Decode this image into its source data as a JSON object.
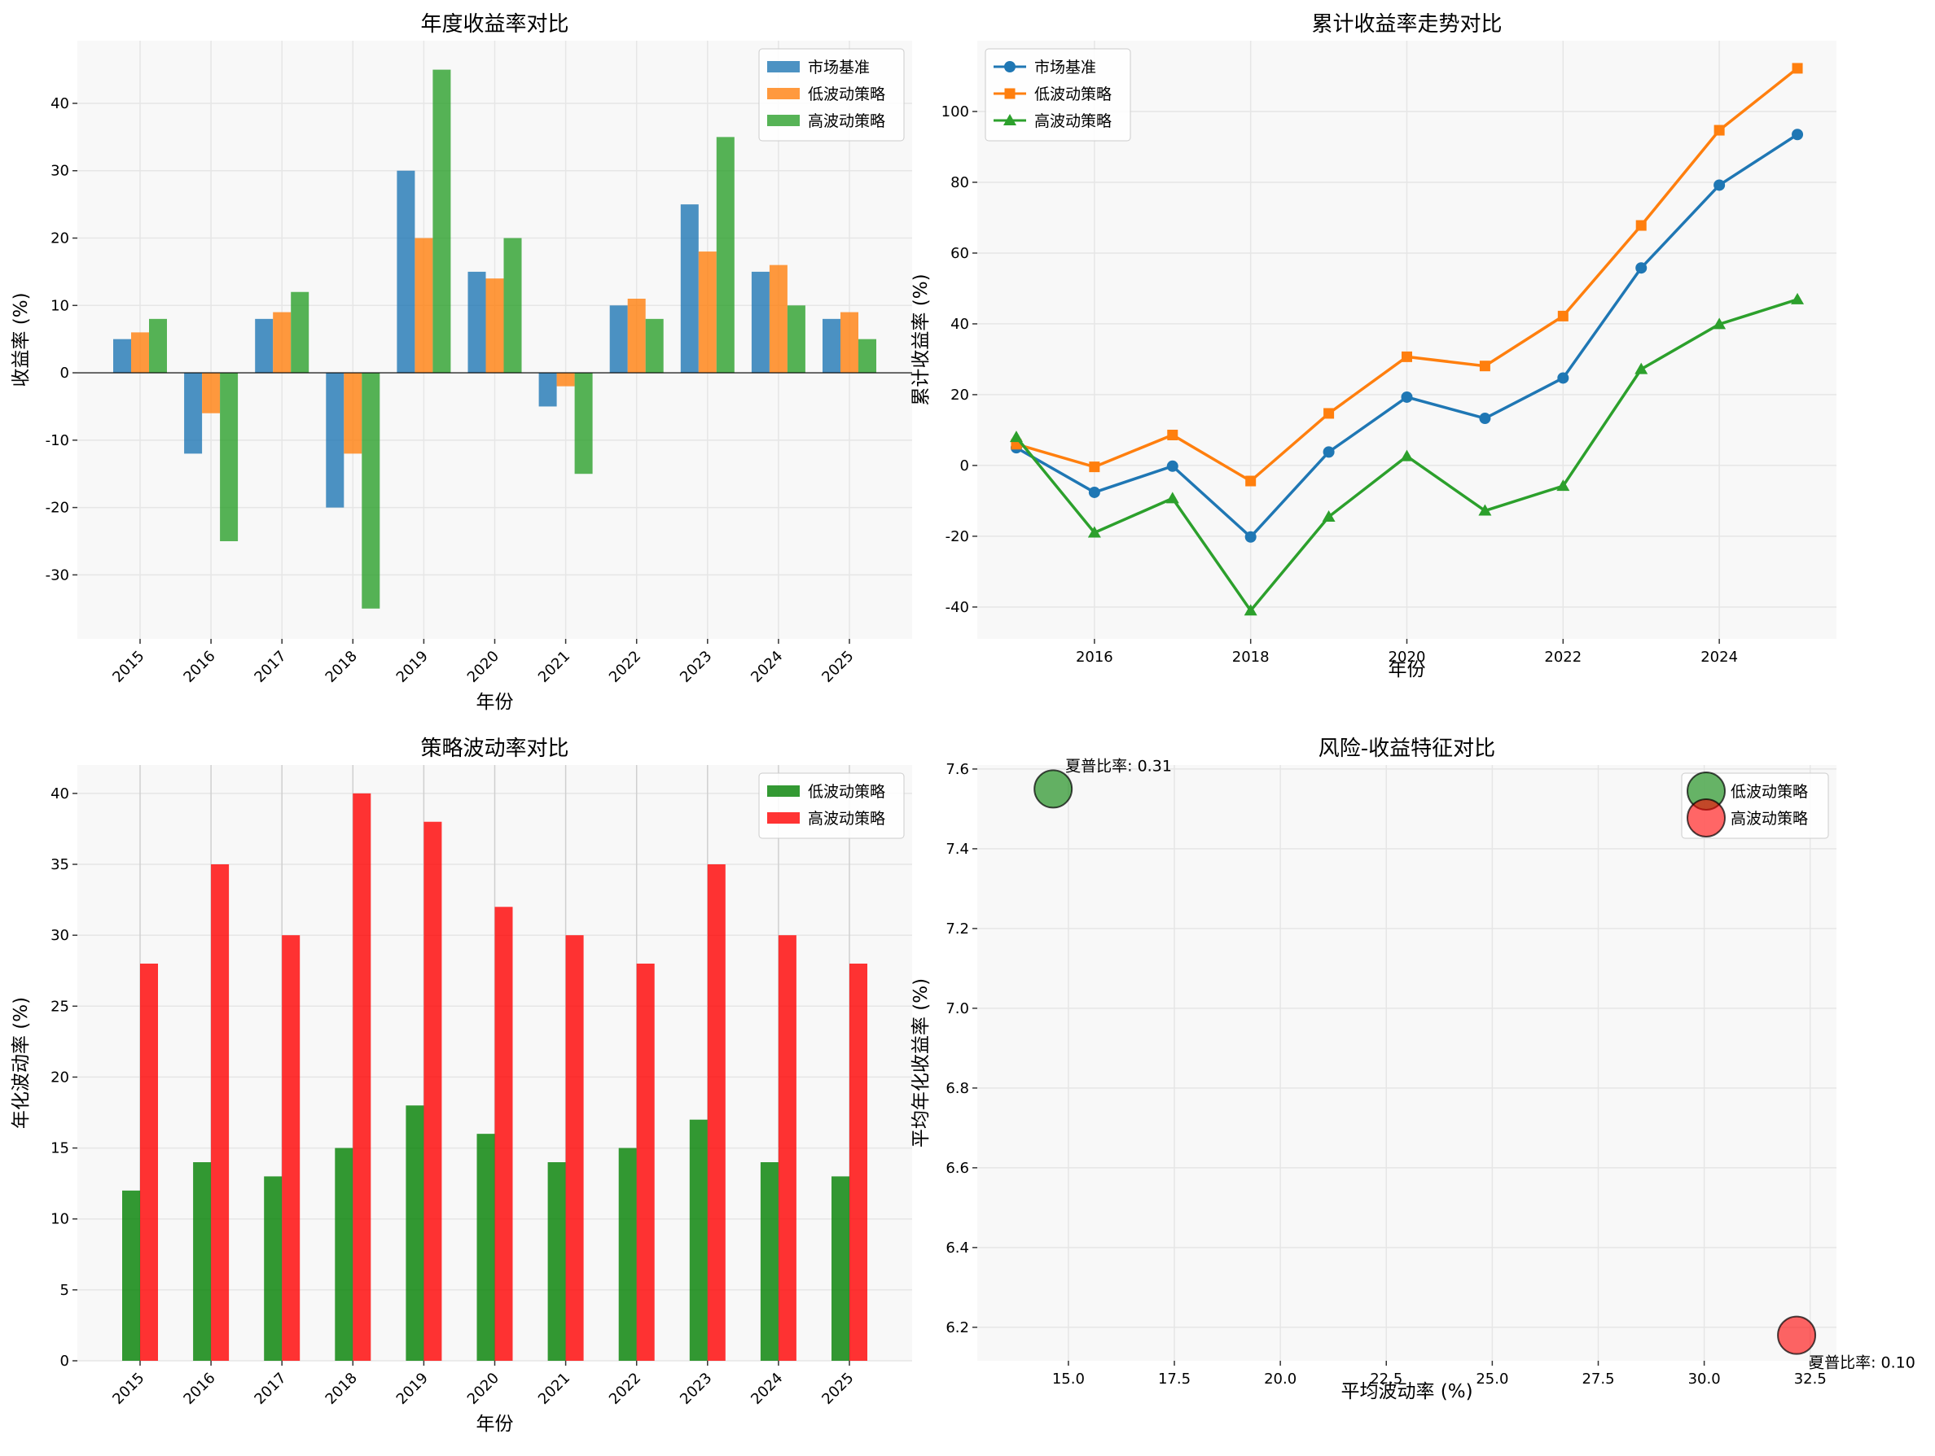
{
  "chart_data": [
    {
      "type": "bar",
      "title": "年度收益率对比",
      "xlabel": "年份",
      "ylabel": "收益率 (%)",
      "categories": [
        "2015",
        "2016",
        "2017",
        "2018",
        "2019",
        "2020",
        "2021",
        "2022",
        "2023",
        "2024",
        "2025"
      ],
      "series": [
        {
          "name": "市场基准",
          "values": [
            5,
            -12,
            8,
            -20,
            30,
            15,
            -5,
            10,
            25,
            15,
            8
          ],
          "color": "#1f77b4"
        },
        {
          "name": "低波动策略",
          "values": [
            6,
            -6,
            9,
            -12,
            20,
            14,
            -2,
            11,
            18,
            16,
            9
          ],
          "color": "#ff7f0e"
        },
        {
          "name": "高波动策略",
          "values": [
            8,
            -25,
            12,
            -35,
            45,
            20,
            -15,
            8,
            35,
            10,
            5
          ],
          "color": "#2ca02c"
        }
      ],
      "yticks": [
        "-30",
        "-20",
        "-10",
        "0",
        "10",
        "20",
        "30",
        "40"
      ],
      "ylim": [
        -39.5,
        49.3
      ],
      "grid": true,
      "legend": "top-right"
    },
    {
      "type": "line",
      "title": "累计收益率走势对比",
      "xlabel": "年份",
      "ylabel": "累计收益率 (%)",
      "x": [
        2015,
        2016,
        2017,
        2018,
        2019,
        2020,
        2021,
        2022,
        2023,
        2024,
        2025
      ],
      "series": [
        {
          "name": "市场基准",
          "values": [
            5,
            -7.6,
            -0.2,
            -20.2,
            3.8,
            19.3,
            13.3,
            24.7,
            55.8,
            79.2,
            93.5
          ],
          "color": "#1f77b4",
          "marker": "circle"
        },
        {
          "name": "低波动策略",
          "values": [
            6,
            -0.4,
            8.6,
            -4.4,
            14.7,
            30.7,
            28.1,
            42.2,
            67.8,
            94.7,
            112.2
          ],
          "color": "#ff7f0e",
          "marker": "square"
        },
        {
          "name": "高波动策略",
          "values": [
            8,
            -19,
            -9.3,
            -41,
            -14.5,
            2.6,
            -12.8,
            -5.8,
            27.2,
            39.9,
            46.9
          ],
          "color": "#2ca02c",
          "marker": "triangle"
        }
      ],
      "xticks": [
        "2016",
        "2018",
        "2020",
        "2022",
        "2024"
      ],
      "yticks": [
        "-40",
        "-20",
        "0",
        "20",
        "40",
        "60",
        "80",
        "100"
      ],
      "xlim": [
        2014.5,
        2025.5
      ],
      "ylim": [
        -49,
        120
      ],
      "grid": true,
      "legend": "top-left"
    },
    {
      "type": "bar",
      "title": "策略波动率对比",
      "xlabel": "年份",
      "ylabel": "年化波动率 (%)",
      "categories": [
        "2015",
        "2016",
        "2017",
        "2018",
        "2019",
        "2020",
        "2021",
        "2022",
        "2023",
        "2024",
        "2025"
      ],
      "series": [
        {
          "name": "低波动策略",
          "values": [
            12,
            14,
            13,
            15,
            18,
            16,
            14,
            15,
            17,
            14,
            13
          ],
          "color": "#008000"
        },
        {
          "name": "高波动策略",
          "values": [
            28,
            35,
            30,
            40,
            38,
            32,
            30,
            28,
            35,
            30,
            28
          ],
          "color": "#ff0000"
        }
      ],
      "yticks": [
        "0",
        "5",
        "10",
        "15",
        "20",
        "25",
        "30",
        "35",
        "40"
      ],
      "ylim": [
        0,
        42
      ],
      "grid": true,
      "legend": "top-right"
    },
    {
      "type": "scatter",
      "title": "风险-收益特征对比",
      "xlabel": "平均波动率 (%)",
      "ylabel": "平均年化收益率 (%)",
      "series": [
        {
          "name": "低波动策略",
          "x": 14.64,
          "y": 7.55,
          "color": "#008000",
          "annotation": "夏普比率: 0.31"
        },
        {
          "name": "高波动策略",
          "x": 32.18,
          "y": 6.18,
          "color": "#ff0000",
          "annotation": "夏普比率: 0.10"
        }
      ],
      "xticks": [
        "15.0",
        "17.5",
        "20.0",
        "22.5",
        "25.0",
        "27.5",
        "30.0",
        "32.5"
      ],
      "yticks": [
        "6.2",
        "6.4",
        "6.6",
        "6.8",
        "7.0",
        "7.2",
        "7.4",
        "7.6"
      ],
      "xlim": [
        12.85,
        33.12
      ],
      "ylim": [
        6.116,
        7.61
      ],
      "grid": true,
      "legend": "top-right"
    }
  ]
}
